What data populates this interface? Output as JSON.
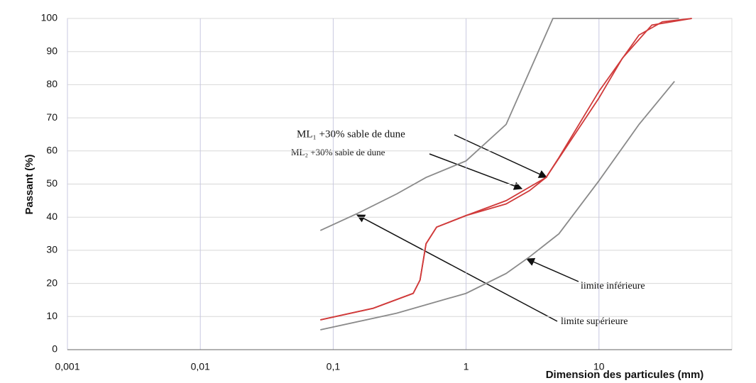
{
  "chart_data": {
    "type": "line",
    "x_label": "Dimension des particules (mm)",
    "y_label": "Passant (%)",
    "xscale": "log",
    "grid": true,
    "xlim": [
      0.001,
      100
    ],
    "ylim": [
      0,
      100
    ],
    "xticks": [
      {
        "value": 0.001,
        "label": "0,001"
      },
      {
        "value": 0.01,
        "label": "0,01"
      },
      {
        "value": 0.1,
        "label": "0,1"
      },
      1,
      10
    ],
    "yticks": [
      0,
      10,
      20,
      30,
      40,
      50,
      60,
      70,
      80,
      90,
      100
    ],
    "series": [
      {
        "color": "#8a8a8a",
        "x": [
          0.08,
          0.15,
          0.3,
          0.5,
          1,
          2,
          3,
          4.5,
          40
        ],
        "values": [
          36,
          41,
          47,
          52,
          57,
          68,
          84,
          100,
          100
        ]
      },
      {
        "color": "#8a8a8a",
        "x": [
          0.08,
          0.3,
          1,
          2,
          3,
          5,
          10,
          20,
          37
        ],
        "values": [
          6,
          11,
          17,
          23,
          28,
          35,
          51,
          68,
          81
        ]
      },
      {
        "color": "#d03a3a",
        "x": [
          0.08,
          0.2,
          0.4,
          0.45,
          0.5,
          0.6,
          1,
          2,
          4,
          5,
          10,
          20,
          30,
          50
        ],
        "values": [
          9,
          12.5,
          17,
          21,
          32,
          37,
          40.5,
          45,
          52,
          58,
          78,
          95,
          99,
          100
        ]
      },
      {
        "color": "#d03a3a",
        "x": [
          0.08,
          0.2,
          0.4,
          0.45,
          0.5,
          0.6,
          1,
          2,
          3,
          4,
          10,
          15,
          25,
          50
        ],
        "values": [
          9,
          12.5,
          17,
          21,
          32,
          37,
          40.5,
          44,
          48,
          52,
          76,
          88,
          98,
          100
        ]
      }
    ],
    "annotations": [
      "ML₁ +30% sable de dune",
      "ML₂ +30% sable de dune",
      "limite inférieure",
      "limite supérieure"
    ]
  }
}
